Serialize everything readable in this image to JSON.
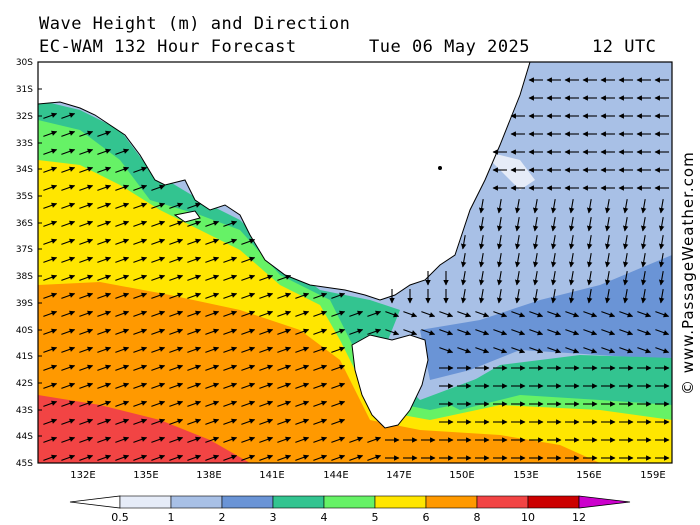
{
  "header": {
    "title_line1": "Wave Height (m) and Direction",
    "title_line2": "EC-WAM 132 Hour Forecast",
    "date": "Tue 06 May 2025",
    "time": "12 UTC"
  },
  "credit": "© www.PassageWeather.com",
  "lat_labels": [
    "30S",
    "31S",
    "32S",
    "33S",
    "34S",
    "35S",
    "36S",
    "37S",
    "38S",
    "39S",
    "40S",
    "41S",
    "42S",
    "43S",
    "44S",
    "45S"
  ],
  "lon_labels": [
    "132E",
    "135E",
    "138E",
    "141E",
    "144E",
    "147E",
    "150E",
    "153E",
    "156E",
    "159E"
  ],
  "legend": {
    "labels": [
      "0.5",
      "1",
      "2",
      "3",
      "4",
      "5",
      "6",
      "8",
      "10",
      "12"
    ],
    "colors": [
      "#e6ecf8",
      "#a8c0e6",
      "#6a94d6",
      "#33c490",
      "#66f266",
      "#ffe600",
      "#ff9900",
      "#f24444",
      "#cc0000",
      "#cc00cc"
    ]
  },
  "colors": {
    "land": "#ffffff",
    "band_0_5_1": "#e6ecf8",
    "band_1_2": "#a8c0e6",
    "band_2_3": "#6a94d6",
    "band_3_4": "#33c490",
    "band_4_5": "#66f266",
    "band_5_6": "#ffe600",
    "band_6_8": "#ff9900",
    "band_8_10": "#f24444"
  }
}
